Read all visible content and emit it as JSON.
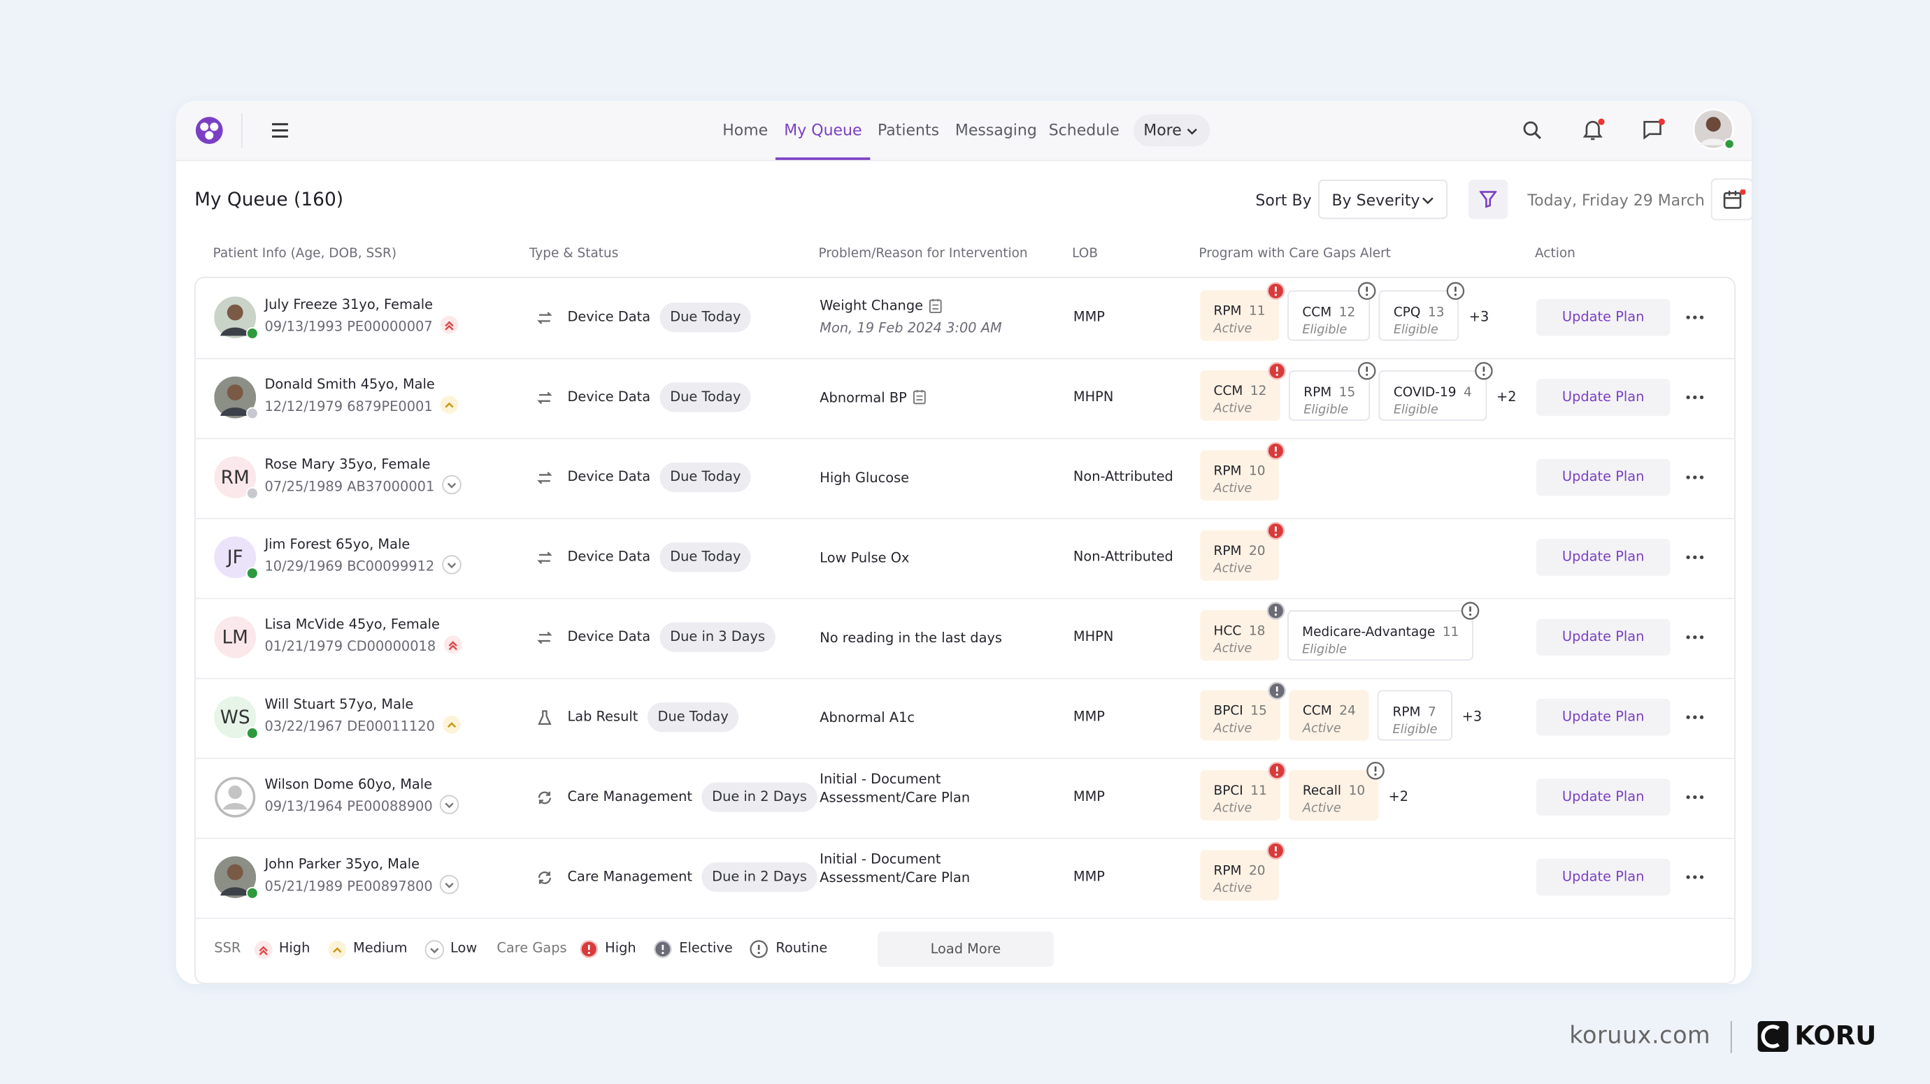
{
  "nav": {
    "items": [
      "Home",
      "My Queue",
      "Patients",
      "Messaging",
      "Schedule"
    ],
    "active": 1,
    "more": "More"
  },
  "queue": {
    "title": "My Queue (160)",
    "sort_label": "Sort By",
    "sort_value": "By Severity",
    "date": "Today, Friday 29 March"
  },
  "table": {
    "headers": [
      "Patient Info (Age, DOB, SSR)",
      "Type & Status",
      "Problem/Reason for Intervention",
      "LOB",
      "Program with Care Gaps Alert",
      "Action"
    ],
    "rows": [
      {
        "avatar": "photo",
        "presence": "online",
        "name": "July Freeze 31yo, Female",
        "meta": "09/13/1993 PE00000007",
        "ssr": "high",
        "type": "Device Data",
        "type_icon": "sync",
        "status": "Due Today",
        "problem": "Weight Change",
        "note": true,
        "problem_sub": "Mon, 19 Feb 2024 3:00 AM",
        "lob": "MMP",
        "programs": [
          {
            "name": "RPM",
            "count": 11,
            "status": "Active",
            "alert": "high"
          },
          {
            "name": "CCM",
            "count": 12,
            "status": "Eligible",
            "alert": "routine"
          },
          {
            "name": "CPQ",
            "count": 13,
            "status": "Eligible",
            "alert": "routine"
          }
        ],
        "more": "+3",
        "action": "Update Plan"
      },
      {
        "avatar": "photo",
        "presence": "offline",
        "name": "Donald Smith 45yo, Male",
        "meta": "12/12/1979 6879PE0001",
        "ssr": "medium",
        "type": "Device Data",
        "type_icon": "sync",
        "status": "Due Today",
        "problem": "Abnormal BP",
        "note": true,
        "lob": "MHPN",
        "programs": [
          {
            "name": "CCM",
            "count": 12,
            "status": "Active",
            "alert": "high"
          },
          {
            "name": "RPM",
            "count": 15,
            "status": "Eligible",
            "alert": "routine"
          },
          {
            "name": "COVID-19",
            "count": 4,
            "status": "Eligible",
            "alert": "routine"
          }
        ],
        "more": "+2",
        "action": "Update Plan"
      },
      {
        "initials": "RM",
        "avatar_color": "#fbe8ea",
        "presence": "offline",
        "name": "Rose Mary 35yo, Female",
        "meta": "07/25/1989 AB37000001",
        "ssr": "low",
        "type": "Device Data",
        "type_icon": "sync",
        "status": "Due Today",
        "problem": "High Glucose",
        "lob": "Non-Attributed",
        "programs": [
          {
            "name": "RPM",
            "count": 10,
            "status": "Active",
            "alert": "high"
          }
        ],
        "action": "Update Plan"
      },
      {
        "initials": "JF",
        "avatar_color": "#ebe3fa",
        "presence": "online",
        "name": "Jim Forest 65yo, Male",
        "meta": "10/29/1969 BC00099912",
        "ssr": "low",
        "type": "Device Data",
        "type_icon": "sync",
        "status": "Due Today",
        "problem": "Low Pulse Ox",
        "lob": "Non-Attributed",
        "programs": [
          {
            "name": "RPM",
            "count": 20,
            "status": "Active",
            "alert": "high"
          }
        ],
        "action": "Update Plan"
      },
      {
        "initials": "LM",
        "avatar_color": "#fbe8ea",
        "name": "Lisa McVide 45yo, Female",
        "meta": "01/21/1979 CD00000018",
        "ssr": "high",
        "type": "Device Data",
        "type_icon": "sync",
        "status": "Due in 3 Days",
        "problem": "No reading in the last days",
        "lob": "MHPN",
        "programs": [
          {
            "name": "HCC",
            "count": 18,
            "status": "Active",
            "alert": "elective"
          },
          {
            "name": "Medicare-Advantage",
            "count": 11,
            "status": "Eligible",
            "alert": "routine"
          }
        ],
        "action": "Update Plan"
      },
      {
        "initials": "WS",
        "avatar_color": "#e6f5e8",
        "presence": "online",
        "name": "Will Stuart 57yo, Male",
        "meta": "03/22/1967 DE00011120",
        "ssr": "medium",
        "type": "Lab Result",
        "type_icon": "flask",
        "status": "Due Today",
        "problem": "Abnormal A1c",
        "lob": "MMP",
        "programs": [
          {
            "name": "BPCI",
            "count": 15,
            "status": "Active",
            "alert": "elective"
          },
          {
            "name": "CCM",
            "count": 24,
            "status": "Active"
          },
          {
            "name": "RPM",
            "count": 7,
            "status": "Eligible"
          }
        ],
        "more": "+3",
        "action": "Update Plan"
      },
      {
        "avatar": "placeholder",
        "name": "Wilson Dome 60yo, Male",
        "meta": "09/13/1964 PE00088900",
        "ssr": "low",
        "type": "Care Management",
        "type_icon": "cycle",
        "status": "Due in 2 Days",
        "problem": "Initial - Document Assessment/Care Plan",
        "lob": "MMP",
        "programs": [
          {
            "name": "BPCI",
            "count": 11,
            "status": "Active",
            "alert": "high"
          },
          {
            "name": "Recall",
            "count": 10,
            "status": "Active",
            "alert": "routine"
          }
        ],
        "more": "+2",
        "action": "Update Plan"
      },
      {
        "avatar": "photo",
        "presence": "online",
        "name": "John Parker 35yo, Male",
        "meta": "05/21/1989 PE00897800",
        "ssr": "low",
        "type": "Care Management",
        "type_icon": "cycle",
        "status": "Due in 2 Days",
        "problem": "Initial - Document Assessment/Care Plan",
        "lob": "MMP",
        "programs": [
          {
            "name": "RPM",
            "count": 20,
            "status": "Active",
            "alert": "high"
          }
        ],
        "action": "Update Plan"
      }
    ]
  },
  "legend": {
    "ssr_label": "SSR",
    "ssr": [
      {
        "level": "high",
        "label": "High"
      },
      {
        "level": "medium",
        "label": "Medium"
      },
      {
        "level": "low",
        "label": "Low"
      }
    ],
    "gaps_label": "Care Gaps",
    "gaps": [
      {
        "level": "high",
        "label": "High"
      },
      {
        "level": "elective",
        "label": "Elective"
      },
      {
        "level": "routine",
        "label": "Routine"
      }
    ],
    "load_more": "Load More"
  },
  "footer": {
    "site": "koruux.com",
    "brand": "KORU"
  }
}
